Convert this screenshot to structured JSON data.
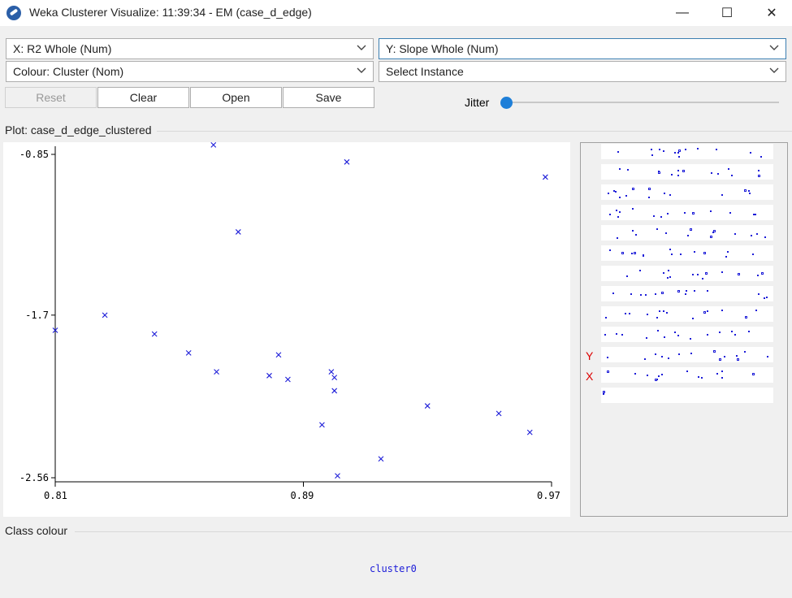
{
  "window": {
    "title": "Weka Clusterer Visualize: 11:39:34 - EM (case_d_edge)",
    "minimize_glyph": "—",
    "maximize_glyph": "☐",
    "close_glyph": "✕"
  },
  "controls": {
    "x_axis_value": "X: R2 Whole (Num)",
    "y_axis_value": "Y: Slope Whole (Num)",
    "colour_value": "Colour: Cluster (Nom)",
    "instance_value": "Select Instance",
    "reset_label": "Reset",
    "clear_label": "Clear",
    "open_label": "Open",
    "save_label": "Save",
    "jitter_label": "Jitter",
    "jitter_value": 0
  },
  "plot": {
    "title": "Plot: case_d_edge_clustered"
  },
  "chart_data": {
    "type": "scatter",
    "title": "",
    "xlabel": "",
    "ylabel": "",
    "xlim": [
      0.81,
      0.97
    ],
    "ylim": [
      -2.56,
      -0.85
    ],
    "x_ticks": [
      "0.81",
      "0.89",
      "0.97"
    ],
    "y_ticks": [
      "-0.85",
      "-1.7",
      "-2.56"
    ],
    "marker": "x",
    "color": "#1c1cd8",
    "series": [
      {
        "name": "cluster0",
        "points": [
          [
            0.861,
            -0.8
          ],
          [
            0.904,
            -0.89
          ],
          [
            0.968,
            -0.97
          ],
          [
            0.869,
            -1.26
          ],
          [
            0.826,
            -1.7
          ],
          [
            0.81,
            -1.78
          ],
          [
            0.842,
            -1.8
          ],
          [
            0.853,
            -1.9
          ],
          [
            0.862,
            -2.0
          ],
          [
            0.879,
            -2.02
          ],
          [
            0.885,
            -2.04
          ],
          [
            0.882,
            -1.91
          ],
          [
            0.899,
            -2.0
          ],
          [
            0.9,
            -2.03
          ],
          [
            0.9,
            -2.1
          ],
          [
            0.896,
            -2.28
          ],
          [
            0.901,
            -2.55
          ],
          [
            0.915,
            -2.46
          ],
          [
            0.93,
            -2.18
          ],
          [
            0.953,
            -2.22
          ],
          [
            0.963,
            -2.32
          ]
        ]
      }
    ]
  },
  "matrix": {
    "y_tag": "Y",
    "x_tag": "X",
    "color": "#1c1cd8"
  },
  "legend": {
    "title": "Class colour",
    "items": [
      "cluster0"
    ]
  }
}
